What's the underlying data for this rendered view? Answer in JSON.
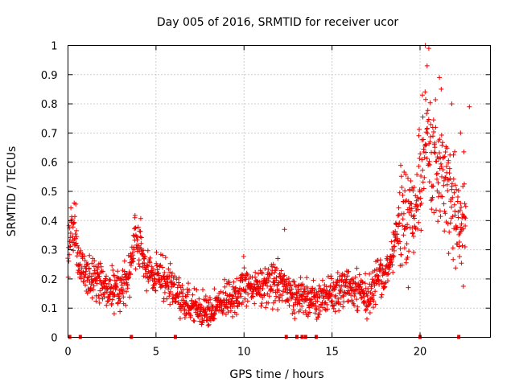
{
  "chart_data": {
    "type": "scatter",
    "title": "Day 005 of 2016, SRMTID for receiver ucor",
    "xlabel": "GPS time / hours",
    "ylabel": "SRMTID / TECUs",
    "xlim": [
      0,
      24
    ],
    "ylim": [
      0,
      1
    ],
    "xticks": [
      0,
      5,
      10,
      15,
      20
    ],
    "xtick_labels": [
      "0",
      "5",
      "10",
      "15",
      "20"
    ],
    "yticks": [
      0,
      0.1,
      0.2,
      0.3,
      0.4,
      0.5,
      0.6,
      0.7,
      0.8,
      0.9,
      1
    ],
    "ytick_labels": [
      "0",
      "0.1",
      "0.2",
      "0.3",
      "0.4",
      "0.5",
      "0.6",
      "0.7",
      "0.8",
      "0.9",
      "1"
    ],
    "grid": true,
    "marker": "+",
    "color": "#ee0000",
    "series": [
      {
        "name": "SRMTID",
        "trend": [
          {
            "x": 0.0,
            "y": 0.27
          },
          {
            "x": 0.2,
            "y": 0.38
          },
          {
            "x": 0.4,
            "y": 0.36
          },
          {
            "x": 0.7,
            "y": 0.24
          },
          {
            "x": 1.0,
            "y": 0.21
          },
          {
            "x": 1.5,
            "y": 0.19
          },
          {
            "x": 2.0,
            "y": 0.17
          },
          {
            "x": 2.5,
            "y": 0.18
          },
          {
            "x": 3.0,
            "y": 0.16
          },
          {
            "x": 3.5,
            "y": 0.22
          },
          {
            "x": 3.8,
            "y": 0.34
          },
          {
            "x": 4.2,
            "y": 0.29
          },
          {
            "x": 4.6,
            "y": 0.22
          },
          {
            "x": 5.2,
            "y": 0.2
          },
          {
            "x": 5.8,
            "y": 0.18
          },
          {
            "x": 6.3,
            "y": 0.14
          },
          {
            "x": 7.0,
            "y": 0.11
          },
          {
            "x": 7.6,
            "y": 0.09
          },
          {
            "x": 8.2,
            "y": 0.1
          },
          {
            "x": 8.8,
            "y": 0.12
          },
          {
            "x": 9.5,
            "y": 0.14
          },
          {
            "x": 10.0,
            "y": 0.18
          },
          {
            "x": 10.8,
            "y": 0.17
          },
          {
            "x": 11.5,
            "y": 0.19
          },
          {
            "x": 12.2,
            "y": 0.17
          },
          {
            "x": 12.8,
            "y": 0.13
          },
          {
            "x": 13.5,
            "y": 0.14
          },
          {
            "x": 14.2,
            "y": 0.12
          },
          {
            "x": 15.0,
            "y": 0.15
          },
          {
            "x": 15.8,
            "y": 0.17
          },
          {
            "x": 16.5,
            "y": 0.15
          },
          {
            "x": 17.0,
            "y": 0.14
          },
          {
            "x": 17.5,
            "y": 0.19
          },
          {
            "x": 18.0,
            "y": 0.22
          },
          {
            "x": 18.5,
            "y": 0.3
          },
          {
            "x": 19.0,
            "y": 0.42
          },
          {
            "x": 19.5,
            "y": 0.4
          },
          {
            "x": 20.0,
            "y": 0.5
          },
          {
            "x": 20.3,
            "y": 0.75
          },
          {
            "x": 20.6,
            "y": 0.58
          },
          {
            "x": 21.0,
            "y": 0.62
          },
          {
            "x": 21.4,
            "y": 0.55
          },
          {
            "x": 21.8,
            "y": 0.45
          },
          {
            "x": 22.2,
            "y": 0.36
          },
          {
            "x": 22.6,
            "y": 0.45
          }
        ],
        "peaks": [
          {
            "x": 0.35,
            "y": 0.46
          },
          {
            "x": 3.8,
            "y": 0.41
          },
          {
            "x": 12.3,
            "y": 0.37
          },
          {
            "x": 20.3,
            "y": 1.0
          },
          {
            "x": 20.5,
            "y": 0.99
          },
          {
            "x": 20.4,
            "y": 0.93
          },
          {
            "x": 21.1,
            "y": 0.89
          },
          {
            "x": 21.2,
            "y": 0.85
          },
          {
            "x": 21.8,
            "y": 0.8
          },
          {
            "x": 22.8,
            "y": 0.79
          },
          {
            "x": 22.3,
            "y": 0.7
          }
        ],
        "spread_note": "dense cloud of + markers, spread roughly ±0.06 TECU around trend, wider after 19 h"
      }
    ],
    "zero_markers_x": [
      0.1,
      0.7,
      3.6,
      6.1,
      12.4,
      13.0,
      13.3,
      13.5,
      14.1,
      20.0,
      22.2
    ]
  }
}
